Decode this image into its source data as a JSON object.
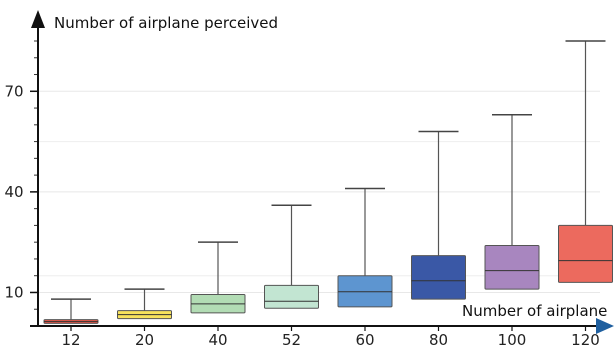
{
  "chart_data": {
    "type": "box",
    "ylabel": "Number of airplane perceived",
    "xlabel": "Number of airplane",
    "categories": [
      "12",
      "20",
      "40",
      "52",
      "60",
      "80",
      "100",
      "120"
    ],
    "y_ticks": [
      10,
      40,
      70
    ],
    "ylim": [
      0,
      85
    ],
    "grid": "horizontal",
    "boxes": [
      {
        "category": "12",
        "whisker_low": 0.8,
        "q1": 0.8,
        "median": 1.3,
        "q3": 1.9,
        "whisker_high": 8,
        "color": "#e8584a"
      },
      {
        "category": "20",
        "whisker_low": 2.2,
        "q1": 2.2,
        "median": 3.4,
        "q3": 4.6,
        "whisker_high": 11,
        "color": "#f7e25c"
      },
      {
        "category": "40",
        "whisker_low": 3.9,
        "q1": 3.9,
        "median": 6.6,
        "q3": 9.4,
        "whisker_high": 25,
        "color": "#b2dcb4"
      },
      {
        "category": "52",
        "whisker_low": 5.3,
        "q1": 5.3,
        "median": 7.4,
        "q3": 12.1,
        "whisker_high": 36,
        "color": "#c2e5d2"
      },
      {
        "category": "60",
        "whisker_low": 5.7,
        "q1": 5.7,
        "median": 10.2,
        "q3": 15,
        "whisker_high": 41,
        "color": "#5d95d0"
      },
      {
        "category": "80",
        "whisker_low": 8,
        "q1": 8,
        "median": 13.5,
        "q3": 21,
        "whisker_high": 58,
        "color": "#3a58a6"
      },
      {
        "category": "100",
        "whisker_low": 11,
        "q1": 11,
        "median": 16.5,
        "q3": 24,
        "whisker_high": 63,
        "color": "#a886bf"
      },
      {
        "category": "120",
        "whisker_low": 13,
        "q1": 13,
        "median": 19.5,
        "q3": 30,
        "whisker_high": 85,
        "color": "#ec6a5e"
      }
    ]
  }
}
